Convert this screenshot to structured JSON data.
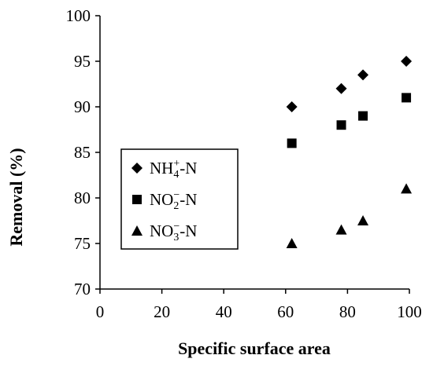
{
  "chart_data": {
    "type": "scatter",
    "xlabel": "Specific surface area",
    "ylabel": "Removal (%)",
    "xlim": [
      0,
      100
    ],
    "ylim": [
      70,
      100
    ],
    "x_ticks": [
      "0",
      "20",
      "40",
      "60",
      "80",
      "100"
    ],
    "y_ticks": [
      "70",
      "75",
      "80",
      "85",
      "90",
      "95",
      "100"
    ],
    "grid": false,
    "legend_position": "middle-left",
    "series": [
      {
        "name": "NH4+-N",
        "label": {
          "base": "NH",
          "sub": "4",
          "sup": "+",
          "tail": "-N"
        },
        "marker": "diamond",
        "color": "#000000",
        "x": [
          62,
          78,
          85,
          99
        ],
        "y": [
          90,
          92,
          93.5,
          95
        ]
      },
      {
        "name": "NO2−-N",
        "label": {
          "base": "NO",
          "sub": "2",
          "sup": "−",
          "tail": "-N"
        },
        "marker": "square",
        "color": "#000000",
        "x": [
          62,
          78,
          85,
          99
        ],
        "y": [
          86,
          88,
          89,
          91
        ]
      },
      {
        "name": "NO3−-N",
        "label": {
          "base": "NO",
          "sub": "3",
          "sup": "−",
          "tail": "-N"
        },
        "marker": "triangle",
        "color": "#000000",
        "x": [
          62,
          78,
          85,
          99
        ],
        "y": [
          75,
          76.5,
          77.5,
          81
        ]
      }
    ]
  }
}
